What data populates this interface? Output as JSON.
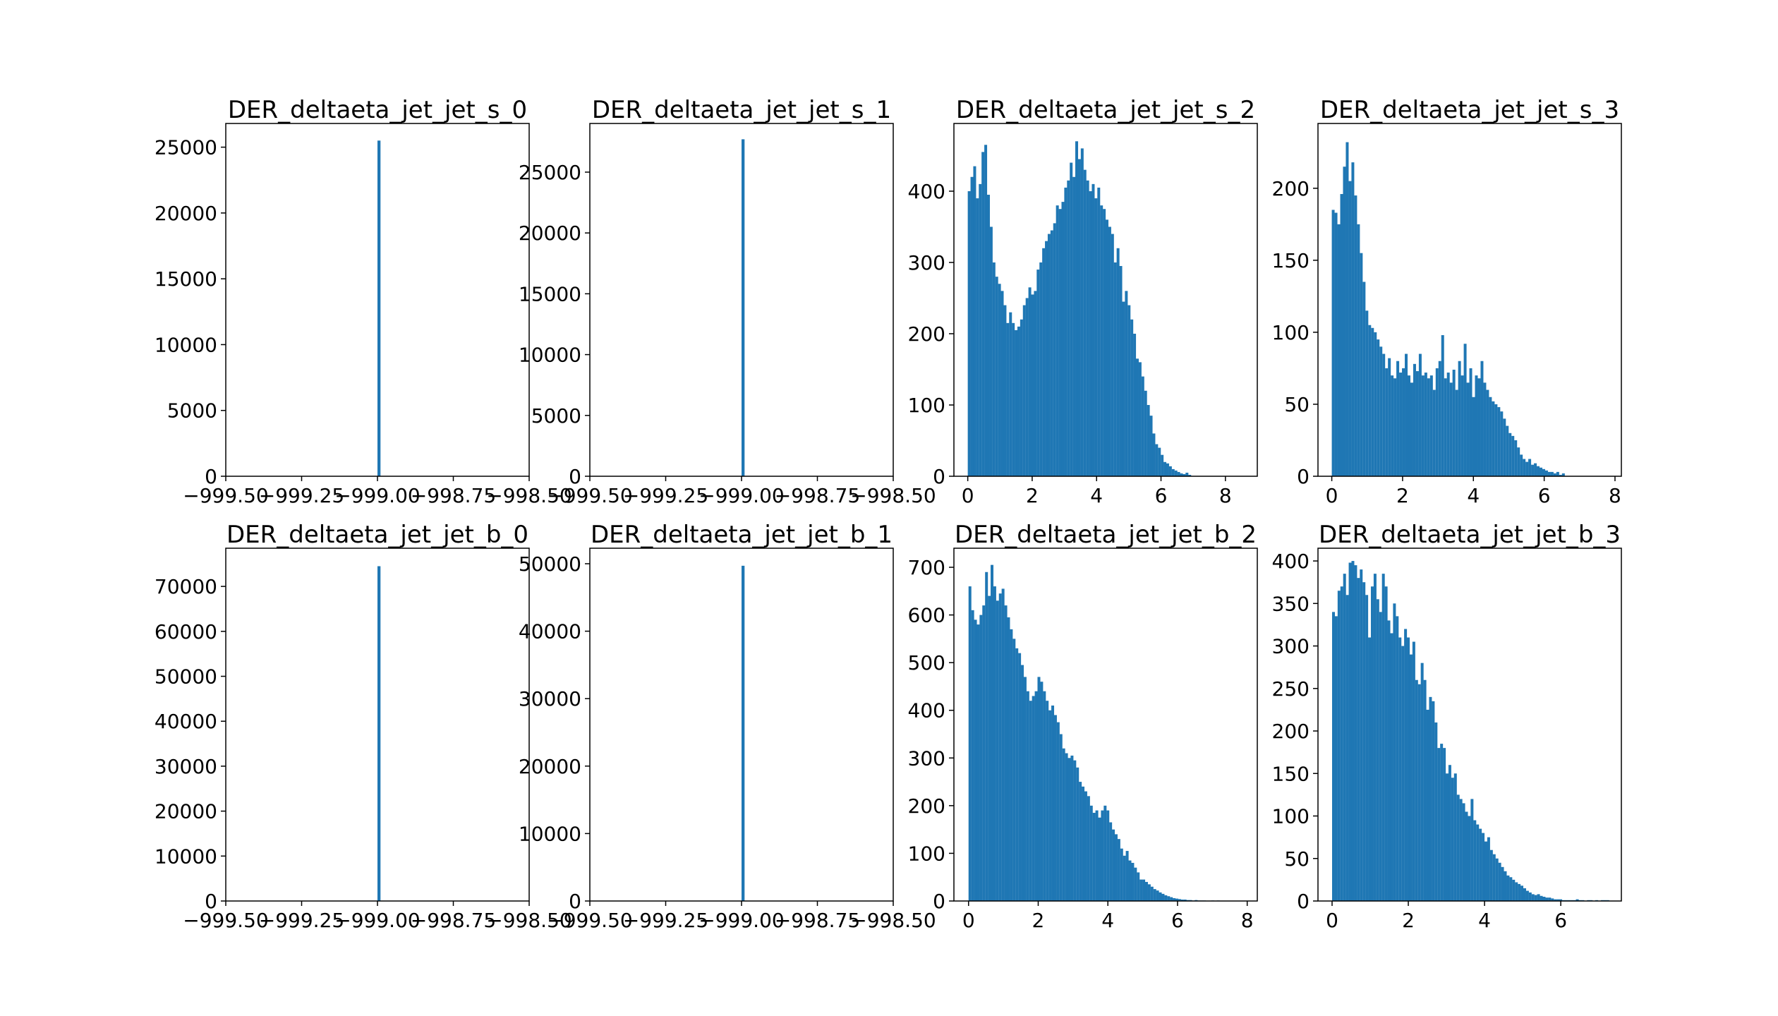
{
  "chart_data": [
    {
      "type": "bar",
      "title": "DER_deltaeta_jet_jet_s_0",
      "xlim": [
        -999.5,
        -998.5
      ],
      "ylim": [
        0,
        26800
      ],
      "xticks": [
        "−999.50",
        "−999.25",
        "−999.00",
        "−998.75",
        "−998.50"
      ],
      "xtick_values": [
        -999.5,
        -999.25,
        -999.0,
        -998.75,
        -998.5
      ],
      "yticks": [
        "0",
        "5000",
        "10000",
        "15000",
        "20000",
        "25000"
      ],
      "ytick_values": [
        0,
        5000,
        10000,
        15000,
        20000,
        25000
      ],
      "bins": {
        "start": -999.0,
        "width": 0.01,
        "values": [
          25500
        ]
      },
      "color": "#1f77b4"
    },
    {
      "type": "bar",
      "title": "DER_deltaeta_jet_jet_s_1",
      "xlim": [
        -999.5,
        -998.5
      ],
      "ylim": [
        0,
        29000
      ],
      "xticks": [
        "−999.50",
        "−999.25",
        "−999.00",
        "−998.75",
        "−998.50"
      ],
      "xtick_values": [
        -999.5,
        -999.25,
        -999.0,
        -998.75,
        -998.5
      ],
      "yticks": [
        "0",
        "5000",
        "10000",
        "15000",
        "20000",
        "25000"
      ],
      "ytick_values": [
        0,
        5000,
        10000,
        15000,
        20000,
        25000
      ],
      "bins": {
        "start": -999.0,
        "width": 0.01,
        "values": [
          27700
        ]
      },
      "color": "#1f77b4"
    },
    {
      "type": "bar",
      "title": "DER_deltaeta_jet_jet_s_2",
      "xlim": [
        -0.43,
        8.99
      ],
      "ylim": [
        0,
        495
      ],
      "xticks": [
        "0",
        "2",
        "4",
        "6",
        "8"
      ],
      "xtick_values": [
        0,
        2,
        4,
        6,
        8
      ],
      "yticks": [
        "0",
        "100",
        "200",
        "300",
        "400"
      ],
      "ytick_values": [
        0,
        100,
        200,
        300,
        400
      ],
      "bins": {
        "start": 0.0,
        "width": 0.0856,
        "values": [
          400,
          420,
          435,
          390,
          410,
          455,
          465,
          395,
          350,
          300,
          280,
          270,
          260,
          240,
          215,
          230,
          215,
          205,
          210,
          220,
          240,
          250,
          265,
          255,
          260,
          290,
          300,
          320,
          330,
          340,
          345,
          355,
          380,
          375,
          385,
          405,
          415,
          440,
          420,
          470,
          445,
          460,
          430,
          415,
          400,
          410,
          390,
          405,
          380,
          375,
          360,
          350,
          340,
          300,
          320,
          295,
          245,
          260,
          240,
          220,
          200,
          165,
          160,
          140,
          120,
          100,
          85,
          60,
          45,
          40,
          30,
          20,
          18,
          14,
          10,
          8,
          6,
          4,
          3,
          5,
          2
        ]
      },
      "color": "#1f77b4"
    },
    {
      "type": "bar",
      "title": "DER_deltaeta_jet_jet_s_3",
      "xlim": [
        -0.39,
        8.18
      ],
      "ylim": [
        0,
        245
      ],
      "xticks": [
        "0",
        "2",
        "4",
        "6",
        "8"
      ],
      "xtick_values": [
        0,
        2,
        4,
        6,
        8
      ],
      "yticks": [
        "0",
        "50",
        "100",
        "150",
        "200"
      ],
      "ytick_values": [
        0,
        50,
        100,
        150,
        200
      ],
      "bins": {
        "start": 0.0,
        "width": 0.0793,
        "values": [
          185,
          183,
          175,
          196,
          215,
          232,
          205,
          218,
          195,
          175,
          155,
          135,
          115,
          105,
          103,
          100,
          95,
          90,
          85,
          75,
          82,
          70,
          68,
          80,
          72,
          75,
          85,
          70,
          65,
          78,
          73,
          85,
          70,
          72,
          68,
          70,
          60,
          75,
          80,
          98,
          68,
          72,
          65,
          74,
          60,
          80,
          70,
          92,
          65,
          75,
          55,
          70,
          68,
          80,
          65,
          60,
          55,
          52,
          50,
          48,
          45,
          40,
          35,
          30,
          28,
          25,
          20,
          15,
          12,
          10,
          12,
          8,
          9,
          7,
          6,
          5,
          4,
          3,
          3,
          2,
          3,
          1,
          2
        ]
      },
      "color": "#1f77b4"
    },
    {
      "type": "bar",
      "title": "DER_deltaeta_jet_jet_b_0",
      "xlim": [
        -999.5,
        -998.5
      ],
      "ylim": [
        0,
        78500
      ],
      "xticks": [
        "−999.50",
        "−999.25",
        "−999.00",
        "−998.75",
        "−998.50"
      ],
      "xtick_values": [
        -999.5,
        -999.25,
        -999.0,
        -998.75,
        -998.5
      ],
      "yticks": [
        "0",
        "10000",
        "20000",
        "30000",
        "40000",
        "50000",
        "60000",
        "70000"
      ],
      "ytick_values": [
        0,
        10000,
        20000,
        30000,
        40000,
        50000,
        60000,
        70000
      ],
      "bins": {
        "start": -999.0,
        "width": 0.01,
        "values": [
          74500
        ]
      },
      "color": "#1f77b4"
    },
    {
      "type": "bar",
      "title": "DER_deltaeta_jet_jet_b_1",
      "xlim": [
        -999.5,
        -998.5
      ],
      "ylim": [
        0,
        52300
      ],
      "xticks": [
        "−999.50",
        "−999.25",
        "−999.00",
        "−998.75",
        "−998.50"
      ],
      "xtick_values": [
        -999.5,
        -999.25,
        -999.0,
        -998.75,
        -998.5
      ],
      "yticks": [
        "0",
        "10000",
        "20000",
        "30000",
        "40000",
        "50000"
      ],
      "ytick_values": [
        0,
        10000,
        20000,
        30000,
        40000,
        50000
      ],
      "bins": {
        "start": -999.0,
        "width": 0.01,
        "values": [
          49700
        ]
      },
      "color": "#1f77b4"
    },
    {
      "type": "bar",
      "title": "DER_deltaeta_jet_jet_b_2",
      "xlim": [
        -0.42,
        8.29
      ],
      "ylim": [
        0,
        740
      ],
      "xticks": [
        "0",
        "2",
        "4",
        "6",
        "8"
      ],
      "xtick_values": [
        0,
        2,
        4,
        6,
        8
      ],
      "yticks": [
        "0",
        "100",
        "200",
        "300",
        "400",
        "500",
        "600",
        "700"
      ],
      "ytick_values": [
        0,
        100,
        200,
        300,
        400,
        500,
        600,
        700
      ],
      "bins": {
        "start": 0.0,
        "width": 0.0792,
        "values": [
          660,
          610,
          590,
          580,
          600,
          620,
          690,
          640,
          705,
          660,
          630,
          645,
          655,
          620,
          595,
          570,
          550,
          530,
          520,
          495,
          470,
          440,
          420,
          430,
          440,
          470,
          460,
          440,
          420,
          400,
          410,
          390,
          375,
          350,
          320,
          310,
          300,
          305,
          295,
          280,
          250,
          240,
          230,
          220,
          200,
          185,
          190,
          175,
          190,
          200,
          190,
          165,
          150,
          140,
          130,
          110,
          95,
          105,
          85,
          80,
          70,
          60,
          45,
          45,
          40,
          35,
          30,
          25,
          22,
          18,
          15,
          12,
          10,
          8,
          6,
          5,
          4,
          3,
          3,
          2,
          2,
          1,
          2,
          1,
          1,
          1,
          0,
          0,
          1,
          0,
          1
        ]
      },
      "color": "#1f77b4"
    },
    {
      "type": "bar",
      "title": "DER_deltaeta_jet_jet_b_3",
      "xlim": [
        -0.37,
        7.59
      ],
      "ylim": [
        0,
        415
      ],
      "xticks": [
        "0",
        "2",
        "4",
        "6"
      ],
      "xtick_values": [
        0,
        2,
        4,
        6
      ],
      "yticks": [
        "0",
        "50",
        "100",
        "150",
        "200",
        "250",
        "300",
        "350",
        "400"
      ],
      "ytick_values": [
        0,
        50,
        100,
        150,
        200,
        250,
        300,
        350,
        400
      ],
      "bins": {
        "start": 0.0,
        "width": 0.0727,
        "values": [
          340,
          335,
          365,
          370,
          385,
          360,
          398,
          400,
          395,
          380,
          390,
          375,
          360,
          310,
          370,
          385,
          355,
          340,
          385,
          370,
          330,
          315,
          350,
          335,
          310,
          300,
          320,
          310,
          290,
          305,
          260,
          255,
          280,
          260,
          225,
          240,
          235,
          210,
          180,
          185,
          180,
          150,
          160,
          145,
          150,
          125,
          120,
          115,
          105,
          100,
          120,
          95,
          90,
          85,
          80,
          70,
          75,
          60,
          55,
          50,
          45,
          40,
          35,
          30,
          28,
          25,
          22,
          20,
          18,
          15,
          12,
          10,
          8,
          7,
          8,
          6,
          5,
          4,
          4,
          3,
          2,
          2,
          2,
          1,
          1,
          1,
          1,
          1,
          2,
          1,
          1,
          0,
          1,
          1,
          0,
          1,
          0,
          1,
          1,
          1
        ]
      },
      "color": "#1f77b4"
    }
  ]
}
